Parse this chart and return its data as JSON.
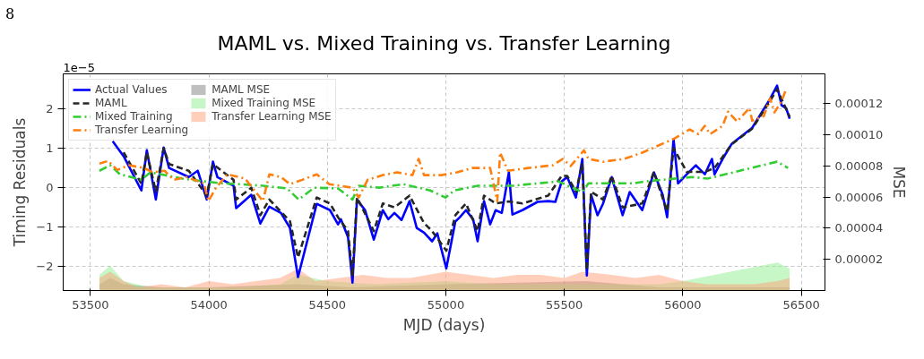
{
  "chart_data": {
    "type": "line",
    "title": "MAML vs. Mixed Training vs. Transfer Learning",
    "xlabel": "MJD (days)",
    "ylabel": "Timing Residuals",
    "y2label": "MSE",
    "annotations": [
      "8",
      "1e−5"
    ],
    "xlim": [
      53385,
      56600
    ],
    "xticks": [
      53500,
      54000,
      54500,
      55000,
      55500,
      56000,
      56500
    ],
    "ylim": [
      -2.61,
      2.89
    ],
    "yticks": [
      {
        "value": -2,
        "label": "−2"
      },
      {
        "value": -1,
        "label": "−1"
      },
      0,
      1,
      2
    ],
    "y2lim": [
      0,
      0.000139
    ],
    "y2ticks": [
      {
        "value": 2e-05,
        "label": "0.00002"
      },
      {
        "value": 4e-05,
        "label": "0.00004"
      },
      {
        "value": 6e-05,
        "label": "0.00006"
      },
      {
        "value": 8e-05,
        "label": "0.00008"
      },
      {
        "value": 0.0001,
        "label": "0.00010"
      },
      {
        "value": 0.00012,
        "label": "0.00012"
      }
    ],
    "grid": true,
    "legend": "top left",
    "series": [
      {
        "name": "MAML MSE",
        "type": "area",
        "axis": "y2",
        "color": "#808080",
        "x": [
          53538,
          53583,
          53640,
          53800,
          54000,
          54376,
          54600,
          55000,
          55595,
          55900,
          56200,
          56451
        ],
        "values": [
          4e-06,
          8e-06,
          4e-06,
          2e-06,
          2e-06,
          4e-06,
          2e-06,
          4e-06,
          6e-06,
          2e-06,
          2e-06,
          2e-06
        ]
      },
      {
        "name": "Mixed Training MSE",
        "type": "area",
        "axis": "y2",
        "color": "#90ee90",
        "x": [
          53538,
          53583,
          53640,
          53750,
          53900,
          54100,
          54300,
          54376,
          54500,
          54700,
          55000,
          55200,
          55500,
          55700,
          55900,
          56000,
          56200,
          56400,
          56451
        ],
        "values": [
          1e-05,
          1.6e-05,
          6e-06,
          2e-06,
          2e-06,
          2e-06,
          4e-06,
          1e-05,
          6e-06,
          4e-06,
          6e-06,
          4e-06,
          4e-06,
          4e-06,
          4e-06,
          6e-06,
          1.2e-05,
          1.8e-05,
          1.4e-05
        ]
      },
      {
        "name": "Transfer Learning MSE",
        "type": "area",
        "axis": "y2",
        "color": "#ffa07a",
        "x": [
          53538,
          53583,
          53640,
          53700,
          53800,
          53900,
          54000,
          54100,
          54200,
          54300,
          54376,
          54450,
          54550,
          54650,
          54750,
          54850,
          55000,
          55100,
          55200,
          55300,
          55400,
          55500,
          55576,
          55700,
          55800,
          55900,
          56000,
          56100,
          56200,
          56300,
          56400,
          56451
        ],
        "values": [
          8e-06,
          1.2e-05,
          6e-06,
          2e-06,
          4e-06,
          2e-06,
          6e-06,
          4e-06,
          6e-06,
          8e-06,
          1.4e-05,
          6e-06,
          8e-06,
          1e-05,
          8e-06,
          8e-06,
          1.2e-05,
          1e-05,
          8e-06,
          1e-05,
          1e-05,
          8e-06,
          1.2e-05,
          1e-05,
          8e-06,
          1e-05,
          6e-06,
          4e-06,
          4e-06,
          4e-06,
          6e-06,
          8e-06
        ]
      },
      {
        "name": "Actual Values",
        "line_style": "solid",
        "color": "#0000ff",
        "x": [
          53594,
          53640,
          53715,
          53738,
          53776,
          53809,
          53832,
          53915,
          53953,
          53991,
          54017,
          54036,
          54104,
          54115,
          54179,
          54217,
          54255,
          54304,
          54342,
          54376,
          54455,
          54511,
          54545,
          54557,
          54587,
          54606,
          54625,
          54659,
          54696,
          54734,
          54757,
          54783,
          54813,
          54847,
          54877,
          54908,
          54942,
          54964,
          55002,
          55040,
          55059,
          55085,
          55115,
          55134,
          55161,
          55187,
          55210,
          55236,
          55266,
          55281,
          55323,
          55387,
          55432,
          55462,
          55489,
          55512,
          55549,
          55576,
          55595,
          55613,
          55640,
          55663,
          55700,
          55746,
          55776,
          55829,
          55878,
          55915,
          55934,
          55961,
          55980,
          56017,
          56055,
          56093,
          56123,
          56134,
          56168,
          56206,
          56293,
          56368,
          56398,
          56417,
          56436,
          56451
        ],
        "values": [
          1.18,
          0.8,
          -0.07,
          0.95,
          -0.3,
          1.02,
          0.5,
          0.27,
          0.43,
          -0.3,
          0.66,
          0.27,
          0.05,
          -0.52,
          -0.18,
          -0.91,
          -0.48,
          -0.64,
          -1.02,
          -2.27,
          -0.41,
          -0.57,
          -0.93,
          -0.8,
          -1.25,
          -2.41,
          -0.3,
          -0.57,
          -1.32,
          -0.57,
          -0.8,
          -0.64,
          -0.82,
          -0.34,
          -1.02,
          -1.14,
          -1.36,
          -1.16,
          -2.05,
          -0.86,
          -0.75,
          -0.57,
          -0.8,
          -1.36,
          -0.34,
          -0.93,
          -0.57,
          -0.64,
          0.39,
          -0.68,
          -0.57,
          -0.36,
          -0.34,
          -0.36,
          0.16,
          0.27,
          -0.25,
          0.73,
          -2.23,
          -0.18,
          -0.7,
          -0.41,
          0.27,
          -0.7,
          -0.11,
          -0.57,
          0.39,
          -0.18,
          -0.75,
          1.23,
          0.11,
          0.34,
          0.57,
          0.34,
          0.73,
          0.34,
          0.73,
          1.11,
          1.52,
          2.25,
          2.59,
          2.09,
          2.02,
          1.75
        ]
      },
      {
        "name": "MAML",
        "line_style": "dashed",
        "color": "#262626",
        "x": [
          53640,
          53715,
          53738,
          53776,
          53809,
          53832,
          53915,
          53991,
          54017,
          54104,
          54115,
          54179,
          54217,
          54255,
          54342,
          54376,
          54455,
          54511,
          54545,
          54587,
          54606,
          54625,
          54696,
          54734,
          54783,
          54847,
          54908,
          54942,
          55002,
          55040,
          55085,
          55134,
          55161,
          55210,
          55266,
          55323,
          55432,
          55489,
          55512,
          55549,
          55576,
          55595,
          55613,
          55663,
          55700,
          55746,
          55829,
          55878,
          55934,
          55961,
          56017,
          56093,
          56134,
          56206,
          56293,
          56368,
          56398,
          56451
        ],
        "values": [
          0.9,
          0.1,
          0.9,
          -0.1,
          1.0,
          0.6,
          0.43,
          -0.2,
          0.6,
          0.2,
          -0.3,
          0.0,
          -0.7,
          -0.3,
          -0.85,
          -1.77,
          -0.25,
          -0.4,
          -0.75,
          -1.1,
          -2.25,
          -0.25,
          -1.1,
          -0.4,
          -0.5,
          -0.2,
          -0.9,
          -1.1,
          -1.6,
          -0.7,
          -0.4,
          -1.1,
          -0.2,
          -0.4,
          -0.35,
          -0.4,
          -0.2,
          0.3,
          0.3,
          -0.1,
          0.6,
          -2.1,
          -0.1,
          -0.3,
          0.3,
          -0.5,
          -0.4,
          0.4,
          -0.6,
          1.0,
          0.4,
          0.4,
          0.5,
          1.1,
          1.5,
          2.2,
          2.5,
          1.8
        ]
      },
      {
        "name": "Mixed Training",
        "line_style": "dashdot",
        "color": "#32cd32",
        "x": [
          53538,
          53583,
          53625,
          53715,
          53753,
          53813,
          53889,
          53979,
          54055,
          54130,
          54228,
          54330,
          54379,
          54444,
          54545,
          54606,
          54632,
          54719,
          54821,
          54934,
          54998,
          55036,
          55134,
          55225,
          55285,
          55474,
          55576,
          55602,
          55791,
          55840,
          56040,
          56104,
          56398,
          56444
        ],
        "values": [
          0.43,
          0.57,
          0.34,
          0.2,
          0.39,
          0.32,
          0.23,
          0.16,
          0.11,
          0.09,
          0.05,
          -0.02,
          -0.3,
          0,
          -0.02,
          -0.3,
          0.05,
          0,
          0.09,
          -0.07,
          -0.25,
          -0.07,
          0.05,
          0.05,
          0.05,
          0.16,
          -0.11,
          0.11,
          0.11,
          0.16,
          0.27,
          0.23,
          0.66,
          0.5
        ]
      },
      {
        "name": "Transfer Learning",
        "line_style": "dashdot",
        "color": "#ff7f0e",
        "x": [
          53538,
          53575,
          53613,
          53662,
          53726,
          53764,
          53813,
          53851,
          53904,
          53979,
          53998,
          54028,
          54077,
          54153,
          54228,
          54255,
          54304,
          54342,
          54394,
          54455,
          54508,
          54606,
          54632,
          54670,
          54734,
          54794,
          54859,
          54885,
          54908,
          54983,
          55047,
          55112,
          55187,
          55217,
          55229,
          55262,
          55349,
          55451,
          55493,
          55527,
          55583,
          55602,
          55663,
          55753,
          55829,
          55965,
          56029,
          56066,
          56093,
          56115,
          56168,
          56191,
          56229,
          56281,
          56293,
          56342,
          56368,
          56387,
          56417,
          56436
        ],
        "values": [
          0.61,
          0.68,
          0.45,
          0.57,
          0.5,
          0.39,
          0.43,
          0.2,
          0.27,
          0.11,
          -0.34,
          -0.02,
          0.34,
          0.23,
          -0.34,
          0.34,
          0.27,
          0.09,
          0.2,
          0.34,
          0.09,
          0,
          -0.25,
          0.2,
          0.32,
          0.39,
          0.32,
          0.73,
          0.32,
          0.32,
          0.39,
          0.5,
          0.5,
          -0.34,
          0.89,
          0.43,
          0.5,
          0.57,
          0.73,
          0.55,
          0.95,
          0.73,
          0.66,
          0.73,
          0.89,
          1.25,
          1.48,
          1.36,
          1.57,
          1.36,
          1.57,
          1.93,
          1.68,
          2.02,
          1.7,
          1.82,
          2.27,
          1.91,
          2.2,
          2.5
        ]
      }
    ]
  }
}
